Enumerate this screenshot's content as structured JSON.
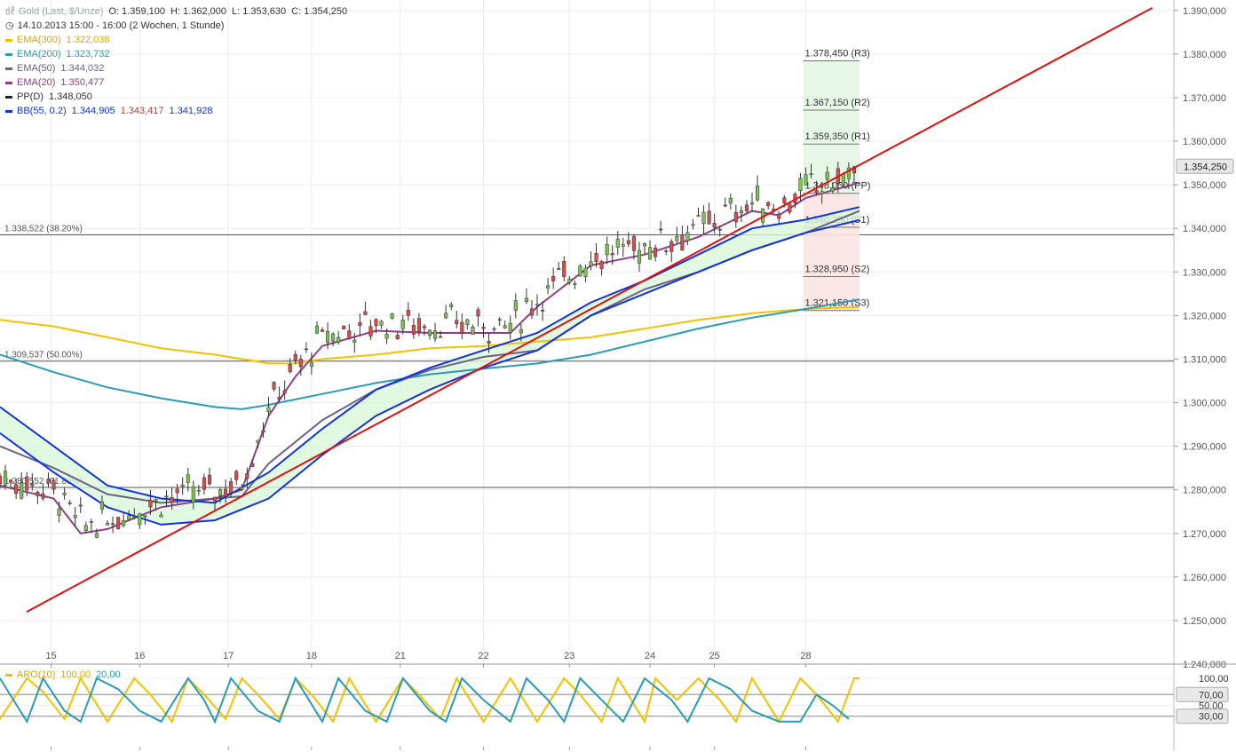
{
  "header": {
    "instrument_label": "Gold (Last, $/Unze)",
    "open": "O: 1.359,100",
    "high": "H: 1.362,000",
    "low": "L: 1.353,630",
    "close": "C: 1.354,250",
    "period": "14.10.2013 15:00 - 16:00 (2 Wochen, 1 Stunde)"
  },
  "indicators": [
    {
      "label": "EMA(300)",
      "value": "1.322,038",
      "color": "#f2c200"
    },
    {
      "label": "EMA(200)",
      "value": "1.323,732",
      "color": "#2a9bb5"
    },
    {
      "label": "EMA(50)",
      "value": "1.344,032",
      "color": "#6e6284"
    },
    {
      "label": "EMA(20)",
      "value": "1.350,477",
      "color": "#8e3f86"
    },
    {
      "label": "PP(D)",
      "value": "1.348,050",
      "color": "#222222"
    },
    {
      "label": "BB(55, 0.2)",
      "value": "1.344,905",
      "value2": "1.343,417",
      "value3": "1.341,928",
      "color": "#1133dd",
      "color2": "#cc3333"
    }
  ],
  "oscillator": {
    "label": "ARO(10)",
    "value_up": "100,00",
    "value_down": "20,00",
    "color_up": "#f2c200",
    "color_down": "#2a9bb5",
    "axis_ticks": [
      "100,00",
      "70,00",
      "50,00",
      "30,00"
    ]
  },
  "chart_data": {
    "type": "candlestick",
    "instrument": "Gold (Last, $/Unze)",
    "timeframe": "1 Stunde",
    "ylim": [
      1240,
      1392
    ],
    "y_ticks": [
      "1.390,000",
      "1.380,000",
      "1.370,000",
      "1.360,000",
      "1.350,000",
      "1.340,000",
      "1.330,000",
      "1.320,000",
      "1.310,000",
      "1.300,000",
      "1.290,000",
      "1.280,000",
      "1.270,000",
      "1.260,000",
      "1.250,000",
      "1.240,000"
    ],
    "x_ticks": [
      "15",
      "16",
      "17",
      "18",
      "21",
      "22",
      "23",
      "24",
      "25",
      "28"
    ],
    "last_price": "1.354,250",
    "fib_levels": [
      {
        "label": "1.338,522 (38.20%)",
        "value": 1338.522
      },
      {
        "label": "1.309,537 (50.00%)",
        "value": 1309.537
      },
      {
        "label": "1.280,552 (61.80%)",
        "value": 1280.552
      }
    ],
    "pivots": [
      {
        "label": "1.378,450 (R3)",
        "value": 1378.45
      },
      {
        "label": "1.367,150 (R2)",
        "value": 1367.15
      },
      {
        "label": "1.359,350 (R1)",
        "value": 1359.35
      },
      {
        "label": "1.348,050 (PP)",
        "value": 1348.05
      },
      {
        "label": "1.340,250 (S1)",
        "value": 1340.25
      },
      {
        "label": "1.328,950 (S2)",
        "value": 1328.95
      },
      {
        "label": "1.321,150 (S3)",
        "value": 1321.15
      }
    ],
    "trendline": [
      [
        0,
        1252
      ],
      [
        155,
        1391
      ]
    ],
    "ema300": [
      [
        0,
        1319
      ],
      [
        10,
        1317.5
      ],
      [
        20,
        1315
      ],
      [
        30,
        1312.5
      ],
      [
        40,
        1311
      ],
      [
        45,
        1310
      ],
      [
        50,
        1309
      ],
      [
        55,
        1309
      ],
      [
        60,
        1310
      ],
      [
        70,
        1311
      ],
      [
        80,
        1312.5
      ],
      [
        90,
        1313
      ],
      [
        100,
        1314
      ],
      [
        110,
        1315
      ],
      [
        120,
        1317
      ],
      [
        130,
        1319
      ],
      [
        140,
        1320.5
      ],
      [
        150,
        1321.5
      ],
      [
        160,
        1322
      ]
    ],
    "ema200": [
      [
        0,
        1311
      ],
      [
        10,
        1307
      ],
      [
        20,
        1303.5
      ],
      [
        30,
        1301
      ],
      [
        40,
        1299
      ],
      [
        45,
        1298.5
      ],
      [
        50,
        1299.5
      ],
      [
        60,
        1302
      ],
      [
        70,
        1304.5
      ],
      [
        80,
        1306.5
      ],
      [
        90,
        1307.8
      ],
      [
        100,
        1309
      ],
      [
        110,
        1311
      ],
      [
        120,
        1314
      ],
      [
        130,
        1317
      ],
      [
        140,
        1319.5
      ],
      [
        150,
        1321.5
      ],
      [
        160,
        1323.7
      ]
    ],
    "ema50": [
      [
        0,
        1290
      ],
      [
        10,
        1285
      ],
      [
        20,
        1279
      ],
      [
        30,
        1277
      ],
      [
        40,
        1278
      ],
      [
        45,
        1278.5
      ],
      [
        50,
        1286
      ],
      [
        60,
        1296
      ],
      [
        70,
        1303
      ],
      [
        80,
        1307.5
      ],
      [
        90,
        1310.5
      ],
      [
        100,
        1312
      ],
      [
        110,
        1320
      ],
      [
        120,
        1326
      ],
      [
        130,
        1330
      ],
      [
        140,
        1335
      ],
      [
        150,
        1339
      ],
      [
        160,
        1344
      ]
    ],
    "ema20": [
      [
        0,
        1281
      ],
      [
        10,
        1278
      ],
      [
        15,
        1270
      ],
      [
        20,
        1271
      ],
      [
        30,
        1276
      ],
      [
        40,
        1278
      ],
      [
        45,
        1280
      ],
      [
        50,
        1297
      ],
      [
        55,
        1306
      ],
      [
        60,
        1313
      ],
      [
        70,
        1316.5
      ],
      [
        80,
        1316
      ],
      [
        90,
        1316
      ],
      [
        95,
        1316
      ],
      [
        100,
        1322
      ],
      [
        110,
        1331.5
      ],
      [
        120,
        1334
      ],
      [
        130,
        1338
      ],
      [
        140,
        1344
      ],
      [
        145,
        1343
      ],
      [
        150,
        1347
      ],
      [
        160,
        1350.5
      ]
    ],
    "bb_upper": [
      [
        0,
        1299
      ],
      [
        10,
        1290
      ],
      [
        20,
        1281
      ],
      [
        30,
        1278
      ],
      [
        40,
        1277
      ],
      [
        50,
        1284
      ],
      [
        60,
        1294
      ],
      [
        70,
        1303
      ],
      [
        80,
        1308
      ],
      [
        90,
        1312
      ],
      [
        100,
        1316
      ],
      [
        110,
        1323
      ],
      [
        120,
        1328
      ],
      [
        130,
        1334
      ],
      [
        140,
        1340
      ],
      [
        150,
        1342
      ],
      [
        160,
        1344.9
      ]
    ],
    "bb_lower": [
      [
        0,
        1293
      ],
      [
        10,
        1284
      ],
      [
        20,
        1276
      ],
      [
        30,
        1272
      ],
      [
        40,
        1273
      ],
      [
        50,
        1278
      ],
      [
        60,
        1288
      ],
      [
        70,
        1297
      ],
      [
        80,
        1303
      ],
      [
        90,
        1308
      ],
      [
        100,
        1312
      ],
      [
        110,
        1320
      ],
      [
        120,
        1325
      ],
      [
        130,
        1330
      ],
      [
        140,
        1335
      ],
      [
        150,
        1339
      ],
      [
        160,
        1341.9
      ]
    ],
    "aroon_up": [
      [
        0,
        25
      ],
      [
        5,
        100
      ],
      [
        8,
        75
      ],
      [
        12,
        25
      ],
      [
        15,
        100
      ],
      [
        20,
        20
      ],
      [
        25,
        100
      ],
      [
        28,
        70
      ],
      [
        32,
        20
      ],
      [
        35,
        100
      ],
      [
        38,
        70
      ],
      [
        42,
        25
      ],
      [
        45,
        100
      ],
      [
        48,
        70
      ],
      [
        52,
        25
      ],
      [
        55,
        100
      ],
      [
        58,
        70
      ],
      [
        62,
        20
      ],
      [
        65,
        100
      ],
      [
        70,
        20
      ],
      [
        75,
        100
      ],
      [
        78,
        70
      ],
      [
        82,
        25
      ],
      [
        85,
        100
      ],
      [
        90,
        20
      ],
      [
        95,
        100
      ],
      [
        100,
        20
      ],
      [
        105,
        100
      ],
      [
        108,
        70
      ],
      [
        112,
        20
      ],
      [
        115,
        100
      ],
      [
        120,
        20
      ],
      [
        122,
        100
      ],
      [
        126,
        60
      ],
      [
        130,
        100
      ],
      [
        134,
        60
      ],
      [
        137,
        20
      ],
      [
        140,
        100
      ],
      [
        145,
        20
      ],
      [
        149,
        100
      ],
      [
        152,
        70
      ],
      [
        156,
        20
      ],
      [
        159,
        100
      ],
      [
        160,
        100
      ]
    ],
    "aroon_down": [
      [
        0,
        100
      ],
      [
        5,
        20
      ],
      [
        8,
        100
      ],
      [
        12,
        40
      ],
      [
        15,
        20
      ],
      [
        18,
        100
      ],
      [
        22,
        80
      ],
      [
        26,
        40
      ],
      [
        30,
        20
      ],
      [
        35,
        100
      ],
      [
        38,
        60
      ],
      [
        40,
        20
      ],
      [
        43,
        100
      ],
      [
        48,
        40
      ],
      [
        52,
        20
      ],
      [
        55,
        100
      ],
      [
        60,
        20
      ],
      [
        63,
        100
      ],
      [
        68,
        40
      ],
      [
        72,
        20
      ],
      [
        75,
        100
      ],
      [
        80,
        40
      ],
      [
        83,
        20
      ],
      [
        86,
        100
      ],
      [
        90,
        60
      ],
      [
        95,
        20
      ],
      [
        98,
        100
      ],
      [
        102,
        60
      ],
      [
        105,
        20
      ],
      [
        108,
        100
      ],
      [
        112,
        60
      ],
      [
        116,
        20
      ],
      [
        120,
        100
      ],
      [
        125,
        60
      ],
      [
        128,
        20
      ],
      [
        132,
        100
      ],
      [
        136,
        80
      ],
      [
        140,
        40
      ],
      [
        145,
        20
      ],
      [
        149,
        20
      ],
      [
        152,
        70
      ],
      [
        155,
        50
      ],
      [
        158,
        25
      ]
    ]
  }
}
